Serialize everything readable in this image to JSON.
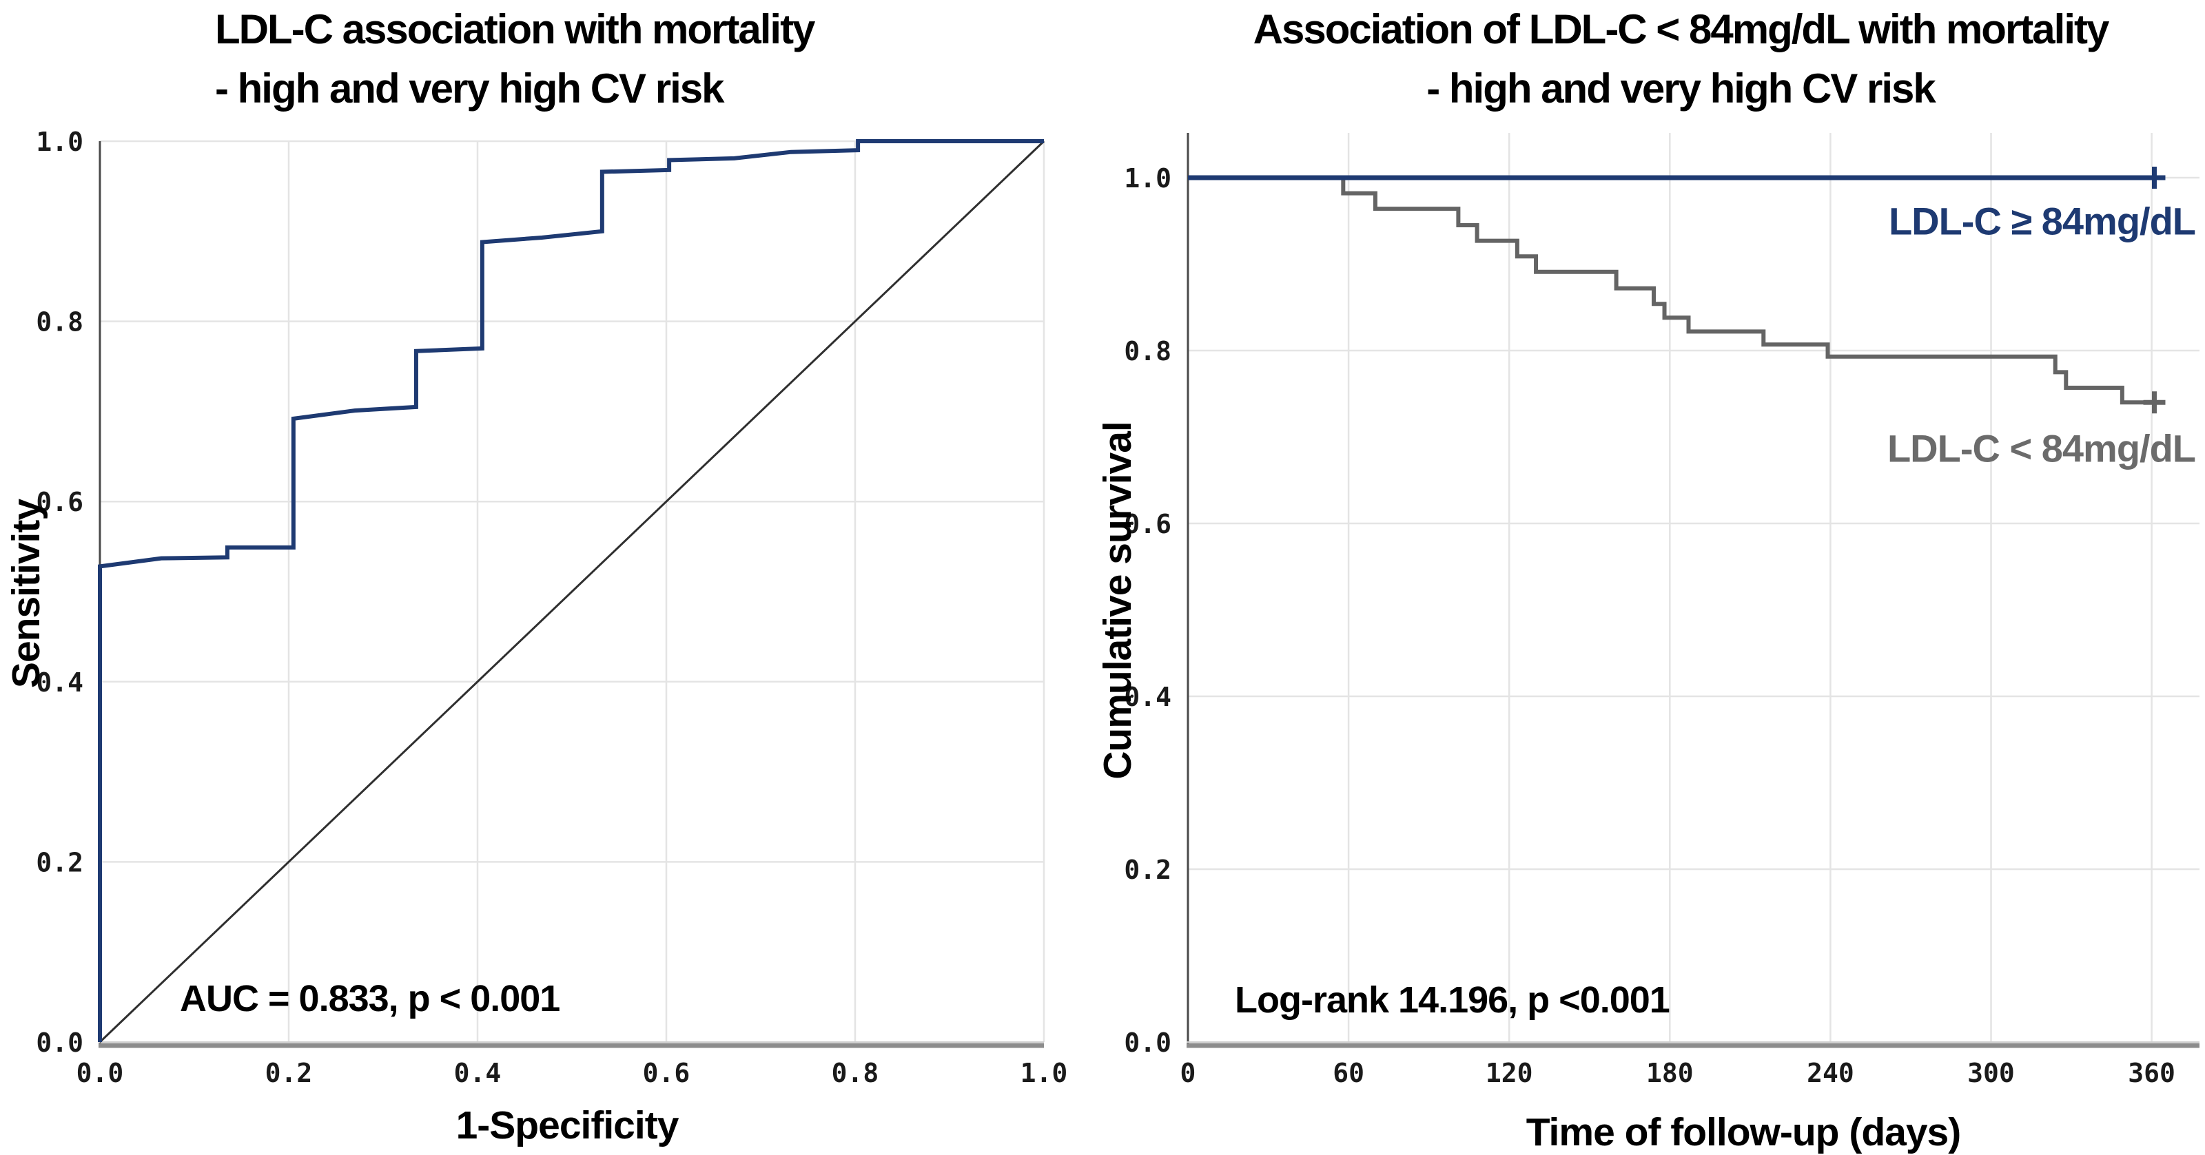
{
  "figure": {
    "background": "#ffffff",
    "navy_color": "#1e3a72",
    "gray_color": "#6b6b6b"
  },
  "chart_data": [
    {
      "id": "roc",
      "type": "line",
      "chart_kind": "ROC curve",
      "title_lines": [
        "LDL-C association with mortality",
        "- high and very high CV risk"
      ],
      "xlabel": "1-Specificity",
      "ylabel": "Sensitivity",
      "xlim": [
        0,
        1
      ],
      "ylim": [
        0,
        1
      ],
      "x_tick_labels": [
        "0.0",
        "0.2",
        "0.4",
        "0.6",
        "0.8",
        "1.0"
      ],
      "x_tick_values": [
        0,
        0.2,
        0.4,
        0.6,
        0.8,
        1.0
      ],
      "y_tick_labels": [
        "0.0",
        "0.2",
        "0.4",
        "0.6",
        "0.8",
        "1.0"
      ],
      "y_tick_values": [
        0,
        0.2,
        0.4,
        0.6,
        0.8,
        1.0
      ],
      "grid": "on",
      "legend_position": "none",
      "annotation": "AUC = 0.833, p < 0.001",
      "auc": 0.833,
      "p_value": "< 0.001",
      "series": [
        {
          "key": "reference-line",
          "name": "Reference diagonal",
          "color": "#2f2f2f",
          "width": 3,
          "step": false,
          "points": [
            [
              0,
              0
            ],
            [
              1,
              1
            ]
          ]
        },
        {
          "key": "roc-curve",
          "name": "LDL-C ROC curve",
          "color": "#1e3a72",
          "width": 6,
          "step": false,
          "points": [
            [
              0,
              0
            ],
            [
              0,
              0.528
            ],
            [
              0.065,
              0.537
            ],
            [
              0.135,
              0.538
            ],
            [
              0.135,
              0.549
            ],
            [
              0.205,
              0.549
            ],
            [
              0.205,
              0.692
            ],
            [
              0.27,
              0.701
            ],
            [
              0.335,
              0.705
            ],
            [
              0.335,
              0.767
            ],
            [
              0.405,
              0.77
            ],
            [
              0.405,
              0.888
            ],
            [
              0.468,
              0.893
            ],
            [
              0.532,
              0.9
            ],
            [
              0.532,
              0.966
            ],
            [
              0.603,
              0.968
            ],
            [
              0.603,
              0.979
            ],
            [
              0.672,
              0.981
            ],
            [
              0.732,
              0.988
            ],
            [
              0.803,
              0.99
            ],
            [
              0.803,
              1.0
            ],
            [
              1.0,
              1.0
            ]
          ]
        }
      ]
    },
    {
      "id": "km",
      "type": "line",
      "chart_kind": "Kaplan-Meier survival",
      "title_lines": [
        "Association of LDL-C < 84mg/dL with mortality",
        "- high and very high CV risk"
      ],
      "xlabel": "Time of follow-up (days)",
      "ylabel": "Cumulative survival",
      "xlim": [
        0,
        378
      ],
      "ylim": [
        0,
        1.05
      ],
      "x_tick_labels": [
        "0",
        "60",
        "120",
        "180",
        "240",
        "300",
        "360"
      ],
      "x_tick_values": [
        0,
        60,
        120,
        180,
        240,
        300,
        360
      ],
      "y_tick_labels": [
        "0.0",
        "0.2",
        "0.4",
        "0.6",
        "0.8",
        "1.0"
      ],
      "y_tick_values": [
        0,
        0.2,
        0.4,
        0.6,
        0.8,
        1.0
      ],
      "grid": "on",
      "legend_position": "inline-right",
      "annotation": "Log-rank 14.196, p <0.001",
      "log_rank": 14.196,
      "p_value": "<0.001",
      "series": [
        {
          "key": "ldl-lt-84",
          "name": "LDL-C < 84mg/dL",
          "color": "#646464",
          "width": 6,
          "step": true,
          "points": [
            [
              0,
              1.0
            ],
            [
              58,
              0.982
            ],
            [
              70,
              0.964
            ],
            [
              101,
              0.945
            ],
            [
              108,
              0.927
            ],
            [
              123,
              0.909
            ],
            [
              130,
              0.891
            ],
            [
              160,
              0.872
            ],
            [
              174,
              0.854
            ],
            [
              178,
              0.838
            ],
            [
              187,
              0.822
            ],
            [
              215,
              0.807
            ],
            [
              239,
              0.793
            ],
            [
              324,
              0.775
            ],
            [
              328,
              0.757
            ],
            [
              349,
              0.74
            ],
            [
              364,
              0.74
            ]
          ],
          "censor_points": [
            [
              361,
              0.74
            ]
          ]
        },
        {
          "key": "ldl-ge-84",
          "name": "LDL-C ≥ 84mg/dL",
          "color": "#1e3a72",
          "width": 7,
          "step": true,
          "points": [
            [
              0,
              1.0
            ],
            [
              364,
              1.0
            ]
          ],
          "censor_points": [
            [
              361,
              1.0
            ]
          ]
        }
      ]
    }
  ]
}
